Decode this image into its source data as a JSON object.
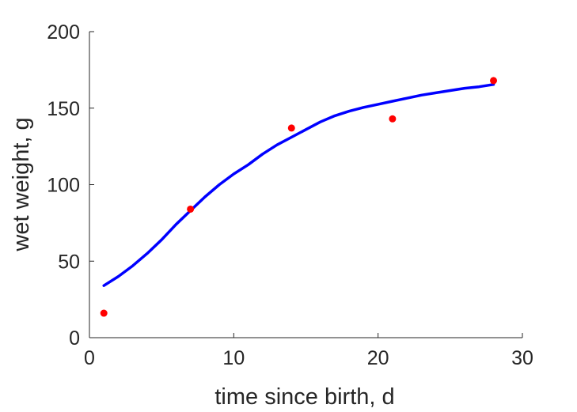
{
  "chart_data": {
    "type": "scatter",
    "xlabel": "time since birth, d",
    "ylabel": "wet weight, g",
    "xlim": [
      0,
      30
    ],
    "ylim": [
      0,
      200
    ],
    "xticks": [
      "0",
      "10",
      "20",
      "30"
    ],
    "yticks": [
      "0",
      "50",
      "100",
      "150",
      "200"
    ],
    "grid": false,
    "box": false,
    "series": [
      {
        "kind": "points",
        "color": "#ff0000",
        "x": [
          1,
          7,
          14,
          21,
          28
        ],
        "y": [
          16,
          84,
          137,
          143,
          168
        ]
      },
      {
        "kind": "line",
        "color": "#0000ff",
        "x": [
          1,
          2,
          3,
          4,
          5,
          6,
          7,
          8,
          9,
          10,
          11,
          12,
          13,
          14,
          15,
          16,
          17,
          18,
          19,
          20,
          21,
          22,
          23,
          24,
          25,
          26,
          27,
          28
        ],
        "y": [
          34,
          40,
          47,
          55,
          64,
          74,
          83,
          92,
          100,
          107,
          113,
          120,
          126,
          131,
          136,
          141,
          145,
          148,
          150.5,
          152.5,
          154.5,
          156.5,
          158.5,
          160,
          161.5,
          163,
          164,
          165.5
        ]
      }
    ]
  }
}
